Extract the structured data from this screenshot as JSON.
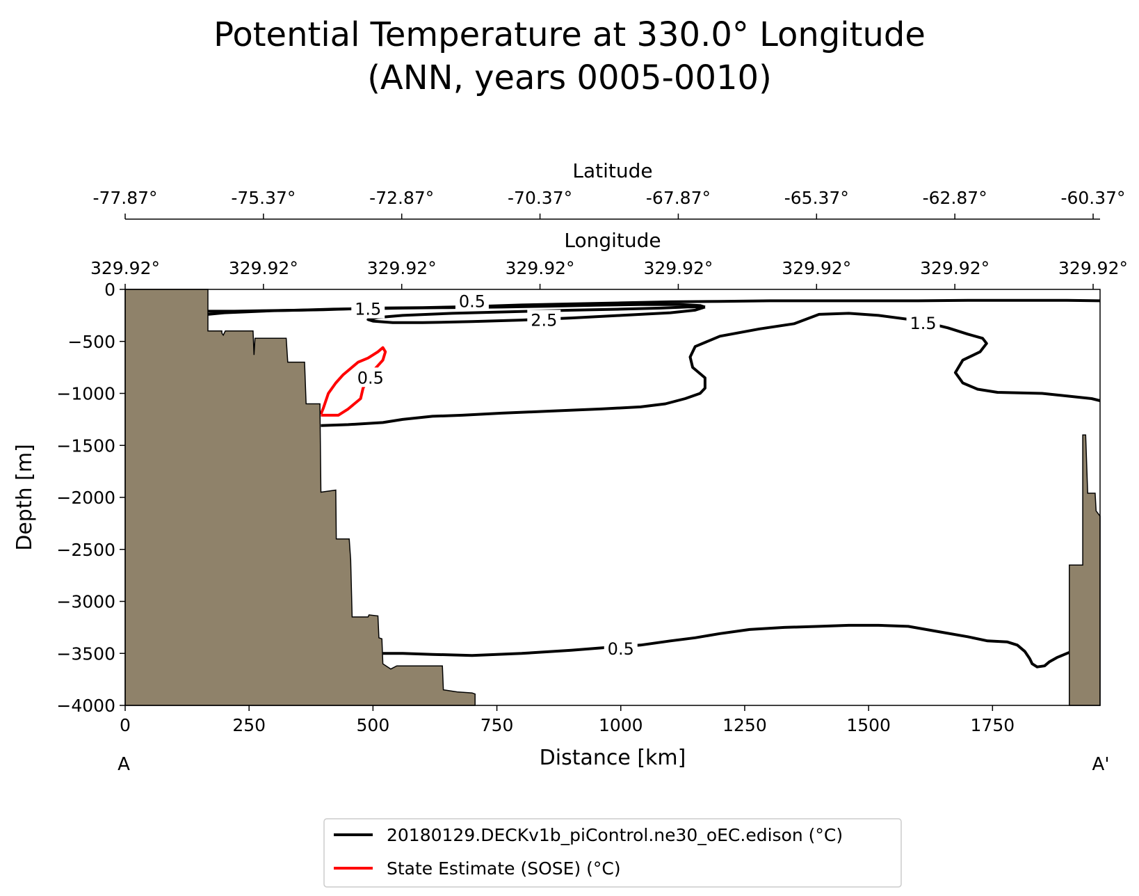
{
  "chart_data": {
    "type": "contour",
    "title_line1": "Potential Temperature at 330.0° Longitude",
    "title_line2": "(ANN, years 0005-0010)",
    "xlabel": "Distance [km]",
    "ylabel": "Depth [m]",
    "xlim": [
      0,
      1967
    ],
    "ylim": [
      -4000,
      0
    ],
    "x_ticks": [
      0,
      250,
      500,
      750,
      1000,
      1250,
      1500,
      1750
    ],
    "x_tick_labels": [
      "0",
      "250",
      "500",
      "750",
      "1000",
      "1250",
      "1500",
      "1750"
    ],
    "y_ticks": [
      0,
      -500,
      -1000,
      -1500,
      -2000,
      -2500,
      -3000,
      -3500,
      -4000
    ],
    "y_tick_labels": [
      "0",
      "−500",
      "−1000",
      "−1500",
      "−2000",
      "−2500",
      "−3000",
      "−3500",
      "−4000"
    ],
    "section_start_label": "A",
    "section_end_label": "A'",
    "secondary_axes": [
      {
        "name": "latitude",
        "label": "Latitude",
        "tick_km": [
          0,
          279,
          558,
          837,
          1116,
          1395,
          1674,
          1953
        ],
        "tick_labels": [
          "-77.87°",
          "-75.37°",
          "-72.87°",
          "-70.37°",
          "-67.87°",
          "-65.37°",
          "-62.87°",
          "-60.37°"
        ]
      },
      {
        "name": "longitude",
        "label": "Longitude",
        "tick_km": [
          0,
          279,
          558,
          837,
          1116,
          1395,
          1674,
          1953
        ],
        "tick_labels": [
          "329.92°",
          "329.92°",
          "329.92°",
          "329.92°",
          "329.92°",
          "329.92°",
          "329.92°",
          "329.92°"
        ]
      }
    ],
    "colors": {
      "land": "#8f826a",
      "model": "#000000",
      "obs": "#ff0000"
    },
    "legend": {
      "position": "bottom-center",
      "entries": [
        {
          "label": "20180129.DECKv1b_piControl.ne30_oEC.edison (°C)",
          "color": "#000000"
        },
        {
          "label": "State Estimate (SOSE) (°C)",
          "color": "#ff0000"
        }
      ]
    },
    "bathymetry_left": [
      [
        0,
        0
      ],
      [
        167,
        0
      ],
      [
        167,
        -400
      ],
      [
        195,
        -400
      ],
      [
        195,
        -420
      ],
      [
        198,
        -440
      ],
      [
        202,
        -400
      ],
      [
        258,
        -400
      ],
      [
        260,
        -630
      ],
      [
        262,
        -470
      ],
      [
        325,
        -470
      ],
      [
        328,
        -700
      ],
      [
        362,
        -700
      ],
      [
        365,
        -1100
      ],
      [
        393,
        -1100
      ],
      [
        395,
        -1950
      ],
      [
        425,
        -1930
      ],
      [
        426,
        -2400
      ],
      [
        452,
        -2400
      ],
      [
        455,
        -2600
      ],
      [
        458,
        -3150
      ],
      [
        490,
        -3150
      ],
      [
        492,
        -3130
      ],
      [
        510,
        -3140
      ],
      [
        512,
        -3350
      ],
      [
        518,
        -3360
      ],
      [
        520,
        -3600
      ],
      [
        536,
        -3650
      ],
      [
        548,
        -3620
      ],
      [
        640,
        -3620
      ],
      [
        642,
        -3850
      ],
      [
        670,
        -3870
      ],
      [
        700,
        -3880
      ],
      [
        706,
        -3890
      ],
      [
        706,
        -4000
      ],
      [
        0,
        -4000
      ]
    ],
    "bathymetry_right": [
      [
        1905,
        -4000
      ],
      [
        1905,
        -2650
      ],
      [
        1932,
        -2650
      ],
      [
        1932,
        -1400
      ],
      [
        1938,
        -1400
      ],
      [
        1942,
        -1960
      ],
      [
        1957,
        -1960
      ],
      [
        1959,
        -2130
      ],
      [
        1967,
        -2180
      ],
      [
        1967,
        -4000
      ]
    ],
    "contours_model": [
      {
        "level": 0.5,
        "label_km": 700,
        "label_depth": -110,
        "points": [
          [
            167,
            -240
          ],
          [
            200,
            -225
          ],
          [
            250,
            -215
          ],
          [
            300,
            -205
          ],
          [
            350,
            -200
          ],
          [
            400,
            -195
          ],
          [
            500,
            -180
          ],
          [
            600,
            -175
          ],
          [
            700,
            -165
          ],
          [
            800,
            -150
          ],
          [
            900,
            -140
          ],
          [
            1000,
            -130
          ],
          [
            1100,
            -120
          ],
          [
            1200,
            -115
          ],
          [
            1300,
            -110
          ],
          [
            1400,
            -110
          ],
          [
            1500,
            -110
          ],
          [
            1600,
            -110
          ],
          [
            1700,
            -105
          ],
          [
            1800,
            -105
          ],
          [
            1900,
            -105
          ],
          [
            1967,
            -110
          ]
        ]
      },
      {
        "level": 1.5,
        "label_km": 490,
        "label_depth": -185,
        "points": [
          [
            167,
            -210
          ],
          [
            220,
            -210
          ],
          [
            280,
            -205
          ],
          [
            350,
            -200
          ],
          [
            420,
            -190
          ],
          [
            490,
            -185
          ],
          [
            560,
            -180
          ],
          [
            650,
            -175
          ],
          [
            760,
            -170
          ],
          [
            850,
            -162
          ],
          [
            950,
            -152
          ],
          [
            1040,
            -145
          ],
          [
            1120,
            -145
          ],
          [
            1160,
            -155
          ],
          [
            1170,
            -170
          ]
        ]
      },
      {
        "level": 2.5,
        "label_km": 845,
        "label_depth": -290,
        "points": [
          [
            1170,
            -170
          ],
          [
            1150,
            -200
          ],
          [
            1100,
            -225
          ],
          [
            1000,
            -250
          ],
          [
            900,
            -275
          ],
          [
            800,
            -295
          ],
          [
            700,
            -310
          ],
          [
            600,
            -320
          ],
          [
            540,
            -320
          ],
          [
            500,
            -305
          ],
          [
            490,
            -290
          ],
          [
            510,
            -270
          ],
          [
            560,
            -250
          ],
          [
            660,
            -230
          ],
          [
            780,
            -215
          ],
          [
            900,
            -200
          ],
          [
            1000,
            -190
          ],
          [
            1080,
            -180
          ],
          [
            1140,
            -168
          ],
          [
            1170,
            -170
          ]
        ]
      },
      {
        "level": 1.5,
        "label_km": 1610,
        "label_depth": -320,
        "points": [
          [
            395,
            -1310
          ],
          [
            450,
            -1300
          ],
          [
            520,
            -1280
          ],
          [
            560,
            -1250
          ],
          [
            620,
            -1220
          ],
          [
            680,
            -1210
          ],
          [
            760,
            -1190
          ],
          [
            860,
            -1170
          ],
          [
            960,
            -1150
          ],
          [
            1040,
            -1130
          ],
          [
            1090,
            -1100
          ],
          [
            1130,
            -1050
          ],
          [
            1160,
            -1000
          ],
          [
            1170,
            -950
          ],
          [
            1170,
            -850
          ],
          [
            1145,
            -750
          ],
          [
            1140,
            -650
          ],
          [
            1150,
            -550
          ],
          [
            1200,
            -450
          ],
          [
            1280,
            -380
          ],
          [
            1350,
            -330
          ],
          [
            1400,
            -240
          ],
          [
            1460,
            -230
          ],
          [
            1520,
            -250
          ],
          [
            1600,
            -300
          ],
          [
            1660,
            -370
          ],
          [
            1700,
            -430
          ],
          [
            1730,
            -470
          ],
          [
            1738,
            -520
          ],
          [
            1725,
            -600
          ],
          [
            1690,
            -680
          ],
          [
            1675,
            -800
          ],
          [
            1690,
            -900
          ],
          [
            1720,
            -960
          ],
          [
            1760,
            -990
          ],
          [
            1850,
            -1000
          ],
          [
            1950,
            -1050
          ],
          [
            1967,
            -1070
          ]
        ]
      },
      {
        "level": 0.5,
        "label_km": 1000,
        "label_depth": -3450,
        "points": [
          [
            520,
            -3500
          ],
          [
            560,
            -3500
          ],
          [
            620,
            -3510
          ],
          [
            700,
            -3520
          ],
          [
            800,
            -3500
          ],
          [
            900,
            -3470
          ],
          [
            980,
            -3440
          ],
          [
            1040,
            -3420
          ],
          [
            1100,
            -3380
          ],
          [
            1150,
            -3350
          ],
          [
            1200,
            -3310
          ],
          [
            1260,
            -3270
          ],
          [
            1330,
            -3250
          ],
          [
            1400,
            -3240
          ],
          [
            1460,
            -3230
          ],
          [
            1520,
            -3230
          ],
          [
            1580,
            -3240
          ],
          [
            1640,
            -3290
          ],
          [
            1700,
            -3340
          ],
          [
            1740,
            -3380
          ],
          [
            1780,
            -3390
          ],
          [
            1800,
            -3420
          ],
          [
            1815,
            -3480
          ],
          [
            1825,
            -3550
          ],
          [
            1830,
            -3600
          ],
          [
            1840,
            -3630
          ],
          [
            1855,
            -3620
          ],
          [
            1865,
            -3580
          ],
          [
            1880,
            -3540
          ],
          [
            1905,
            -3490
          ]
        ]
      }
    ],
    "contours_obs": [
      {
        "level": 0.5,
        "label_km": 495,
        "label_depth": -845,
        "points": [
          [
            395,
            -1200
          ],
          [
            400,
            -1140
          ],
          [
            410,
            -1000
          ],
          [
            425,
            -900
          ],
          [
            440,
            -820
          ],
          [
            455,
            -760
          ],
          [
            470,
            -700
          ],
          [
            490,
            -660
          ],
          [
            510,
            -600
          ],
          [
            520,
            -560
          ],
          [
            525,
            -600
          ],
          [
            520,
            -680
          ],
          [
            505,
            -760
          ],
          [
            490,
            -860
          ],
          [
            480,
            -950
          ],
          [
            475,
            -1050
          ],
          [
            450,
            -1150
          ],
          [
            430,
            -1210
          ],
          [
            395,
            -1210
          ]
        ]
      }
    ]
  }
}
